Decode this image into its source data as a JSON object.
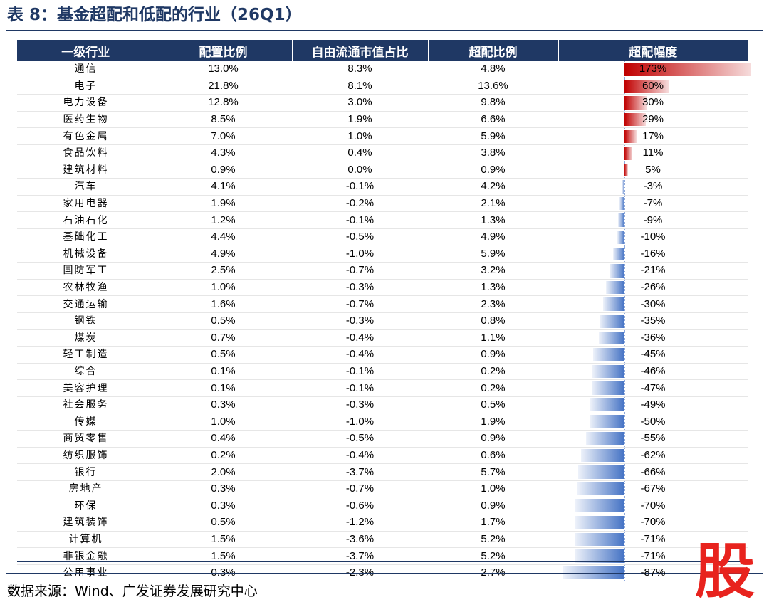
{
  "title": "表 8：基金超配和低配的行业（26Q1）",
  "headers": [
    "一级行业",
    "配置比例",
    "自由流通市值占比",
    "超配比例",
    "超配幅度"
  ],
  "rows": [
    {
      "industry": "通信",
      "allocation": "13.0%",
      "float_share": "8.3%",
      "overweight": "4.8%",
      "magnitude_label": "173%",
      "magnitude": 173
    },
    {
      "industry": "电子",
      "allocation": "21.8%",
      "float_share": "8.1%",
      "overweight": "13.6%",
      "magnitude_label": "60%",
      "magnitude": 60
    },
    {
      "industry": "电力设备",
      "allocation": "12.8%",
      "float_share": "3.0%",
      "overweight": "9.8%",
      "magnitude_label": "30%",
      "magnitude": 30
    },
    {
      "industry": "医药生物",
      "allocation": "8.5%",
      "float_share": "1.9%",
      "overweight": "6.6%",
      "magnitude_label": "29%",
      "magnitude": 29
    },
    {
      "industry": "有色金属",
      "allocation": "7.0%",
      "float_share": "1.0%",
      "overweight": "5.9%",
      "magnitude_label": "17%",
      "magnitude": 17
    },
    {
      "industry": "食品饮料",
      "allocation": "4.3%",
      "float_share": "0.4%",
      "overweight": "3.8%",
      "magnitude_label": "11%",
      "magnitude": 11
    },
    {
      "industry": "建筑材料",
      "allocation": "0.9%",
      "float_share": "0.0%",
      "overweight": "0.9%",
      "magnitude_label": "5%",
      "magnitude": 5
    },
    {
      "industry": "汽车",
      "allocation": "4.1%",
      "float_share": "-0.1%",
      "overweight": "4.2%",
      "magnitude_label": "-3%",
      "magnitude": -3
    },
    {
      "industry": "家用电器",
      "allocation": "1.9%",
      "float_share": "-0.2%",
      "overweight": "2.1%",
      "magnitude_label": "-7%",
      "magnitude": -7
    },
    {
      "industry": "石油石化",
      "allocation": "1.2%",
      "float_share": "-0.1%",
      "overweight": "1.3%",
      "magnitude_label": "-9%",
      "magnitude": -9
    },
    {
      "industry": "基础化工",
      "allocation": "4.4%",
      "float_share": "-0.5%",
      "overweight": "4.9%",
      "magnitude_label": "-10%",
      "magnitude": -10
    },
    {
      "industry": "机械设备",
      "allocation": "4.9%",
      "float_share": "-1.0%",
      "overweight": "5.9%",
      "magnitude_label": "-16%",
      "magnitude": -16
    },
    {
      "industry": "国防军工",
      "allocation": "2.5%",
      "float_share": "-0.7%",
      "overweight": "3.2%",
      "magnitude_label": "-21%",
      "magnitude": -21
    },
    {
      "industry": "农林牧渔",
      "allocation": "1.0%",
      "float_share": "-0.3%",
      "overweight": "1.3%",
      "magnitude_label": "-26%",
      "magnitude": -26
    },
    {
      "industry": "交通运输",
      "allocation": "1.6%",
      "float_share": "-0.7%",
      "overweight": "2.3%",
      "magnitude_label": "-30%",
      "magnitude": -30
    },
    {
      "industry": "钢铁",
      "allocation": "0.5%",
      "float_share": "-0.3%",
      "overweight": "0.8%",
      "magnitude_label": "-35%",
      "magnitude": -35
    },
    {
      "industry": "煤炭",
      "allocation": "0.7%",
      "float_share": "-0.4%",
      "overweight": "1.1%",
      "magnitude_label": "-36%",
      "magnitude": -36
    },
    {
      "industry": "轻工制造",
      "allocation": "0.5%",
      "float_share": "-0.4%",
      "overweight": "0.9%",
      "magnitude_label": "-45%",
      "magnitude": -45
    },
    {
      "industry": "综合",
      "allocation": "0.1%",
      "float_share": "-0.1%",
      "overweight": "0.2%",
      "magnitude_label": "-46%",
      "magnitude": -46
    },
    {
      "industry": "美容护理",
      "allocation": "0.1%",
      "float_share": "-0.1%",
      "overweight": "0.2%",
      "magnitude_label": "-47%",
      "magnitude": -47
    },
    {
      "industry": "社会服务",
      "allocation": "0.3%",
      "float_share": "-0.3%",
      "overweight": "0.5%",
      "magnitude_label": "-49%",
      "magnitude": -49
    },
    {
      "industry": "传媒",
      "allocation": "1.0%",
      "float_share": "-1.0%",
      "overweight": "1.9%",
      "magnitude_label": "-50%",
      "magnitude": -50
    },
    {
      "industry": "商贸零售",
      "allocation": "0.4%",
      "float_share": "-0.5%",
      "overweight": "0.9%",
      "magnitude_label": "-55%",
      "magnitude": -55
    },
    {
      "industry": "纺织服饰",
      "allocation": "0.2%",
      "float_share": "-0.4%",
      "overweight": "0.6%",
      "magnitude_label": "-62%",
      "magnitude": -62
    },
    {
      "industry": "银行",
      "allocation": "2.0%",
      "float_share": "-3.7%",
      "overweight": "5.7%",
      "magnitude_label": "-66%",
      "magnitude": -66
    },
    {
      "industry": "房地产",
      "allocation": "0.3%",
      "float_share": "-0.7%",
      "overweight": "1.0%",
      "magnitude_label": "-67%",
      "magnitude": -67
    },
    {
      "industry": "环保",
      "allocation": "0.3%",
      "float_share": "-0.6%",
      "overweight": "0.9%",
      "magnitude_label": "-70%",
      "magnitude": -70
    },
    {
      "industry": "建筑装饰",
      "allocation": "0.5%",
      "float_share": "-1.2%",
      "overweight": "1.7%",
      "magnitude_label": "-70%",
      "magnitude": -70
    },
    {
      "industry": "计算机",
      "allocation": "1.5%",
      "float_share": "-3.6%",
      "overweight": "5.2%",
      "magnitude_label": "-71%",
      "magnitude": -71
    },
    {
      "industry": "非银金融",
      "allocation": "1.5%",
      "float_share": "-3.7%",
      "overweight": "5.2%",
      "magnitude_label": "-71%",
      "magnitude": -71
    },
    {
      "industry": "公用事业",
      "allocation": "0.3%",
      "float_share": "-2.3%",
      "overweight": "2.7%",
      "magnitude_label": "-87%",
      "magnitude": -87
    }
  ],
  "source": "数据来源：Wind、广发证券发展研究中心",
  "watermark": "股",
  "colors": {
    "header_bg": "#1f3864",
    "positive_bar": "#c00000",
    "negative_bar": "#4472c4",
    "logo": "#e8231e"
  }
}
